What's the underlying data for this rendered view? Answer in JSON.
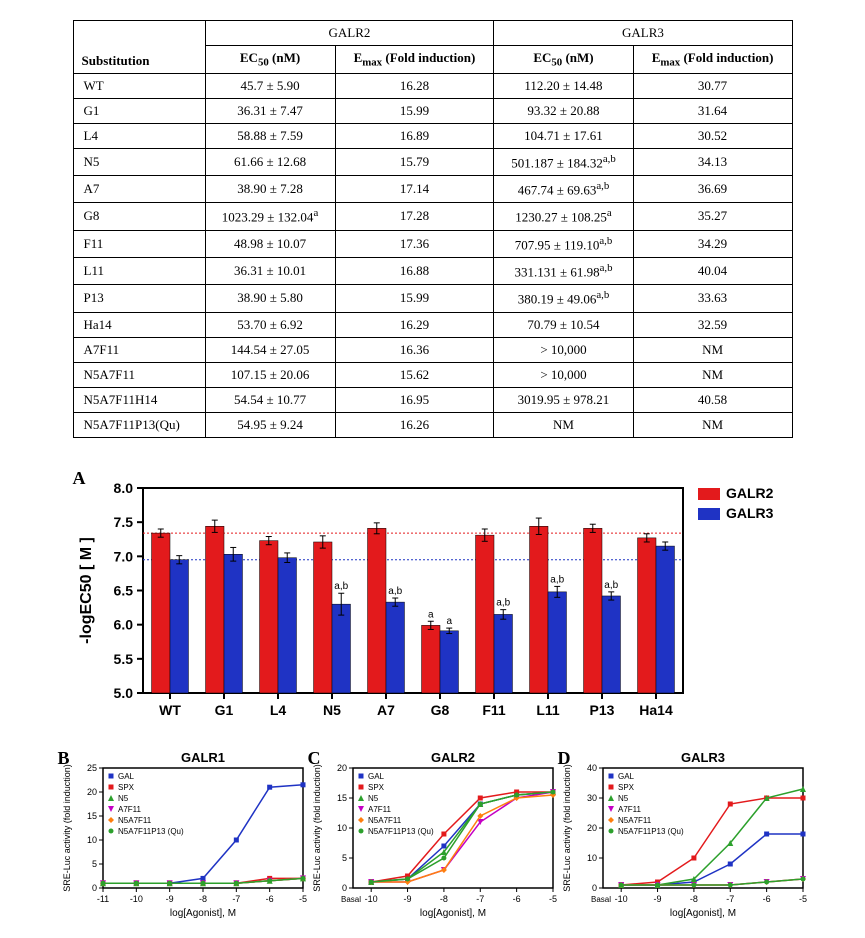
{
  "table": {
    "header_receptor1": "GALR2",
    "header_receptor2": "GALR3",
    "col_sub": "Substitution",
    "col_ec50": "EC",
    "col_ec50_sub": "50",
    "col_ec50_unit": "(nM)",
    "col_emax": "E",
    "col_emax_sub": "max",
    "col_emax_rest": " (Fold induction)",
    "rows": [
      {
        "sub": "WT",
        "r2_ec50": "45.7 ± 5.90",
        "r2_emax": "16.28",
        "r3_ec50": "112.20 ± 14.48",
        "r3_emax": "30.77"
      },
      {
        "sub": "G1",
        "r2_ec50": "36.31 ± 7.47",
        "r2_emax": "15.99",
        "r3_ec50": "93.32 ± 20.88",
        "r3_emax": "31.64"
      },
      {
        "sub": "L4",
        "r2_ec50": "58.88 ± 7.59",
        "r2_emax": "16.89",
        "r3_ec50": "104.71 ± 17.61",
        "r3_emax": "30.52"
      },
      {
        "sub": "N5",
        "r2_ec50": "61.66 ± 12.68",
        "r2_emax": "15.79",
        "r3_ec50": "501.187 ± 184.32",
        "r3_ec50_sup": "a,b",
        "r3_emax": "34.13"
      },
      {
        "sub": "A7",
        "r2_ec50": "38.90 ± 7.28",
        "r2_emax": "17.14",
        "r3_ec50": "467.74 ± 69.63",
        "r3_ec50_sup": "a,b",
        "r3_emax": "36.69"
      },
      {
        "sub": "G8",
        "r2_ec50": "1023.29 ± 132.04",
        "r2_ec50_sup": "a",
        "r2_emax": "17.28",
        "r3_ec50": "1230.27 ± 108.25",
        "r3_ec50_sup": "a",
        "r3_emax": "35.27"
      },
      {
        "sub": "F11",
        "r2_ec50": "48.98 ± 10.07",
        "r2_emax": "17.36",
        "r3_ec50": "707.95 ± 119.10",
        "r3_ec50_sup": "a,b",
        "r3_emax": "34.29"
      },
      {
        "sub": "L11",
        "r2_ec50": "36.31 ± 10.01",
        "r2_emax": "16.88",
        "r3_ec50": "331.131 ± 61.98",
        "r3_ec50_sup": "a,b",
        "r3_emax": "40.04"
      },
      {
        "sub": "P13",
        "r2_ec50": "38.90 ± 5.80",
        "r2_emax": "15.99",
        "r3_ec50": "380.19 ± 49.06",
        "r3_ec50_sup": "a,b",
        "r3_emax": "33.63"
      },
      {
        "sub": "Ha14",
        "r2_ec50": "53.70 ± 6.92",
        "r2_emax": "16.29",
        "r3_ec50": "70.79 ± 10.54",
        "r3_emax": "32.59"
      },
      {
        "sub": "A7F11",
        "r2_ec50": "144.54 ± 27.05",
        "r2_emax": "16.36",
        "r3_ec50": "> 10,000",
        "r3_emax": "NM"
      },
      {
        "sub": "N5A7F11",
        "r2_ec50": "107.15 ± 20.06",
        "r2_emax": "15.62",
        "r3_ec50": "> 10,000",
        "r3_emax": "NM"
      },
      {
        "sub": "N5A7F11H14",
        "r2_ec50": "54.54 ± 10.77",
        "r2_emax": "16.95",
        "r3_ec50": "3019.95 ± 978.21",
        "r3_emax": "40.58"
      },
      {
        "sub": "N5A7F11P13(Qu)",
        "r2_ec50": "54.95 ± 9.24",
        "r2_emax": "16.26",
        "r3_ec50": "NM",
        "r3_emax": "NM"
      }
    ]
  },
  "panelA": {
    "type": "bar",
    "label": "A",
    "ylabel": "-logEC50 [ M ]",
    "categories": [
      "WT",
      "G1",
      "L4",
      "N5",
      "A7",
      "G8",
      "F11",
      "L11",
      "P13",
      "Ha14"
    ],
    "ylim": [
      5.0,
      8.0
    ],
    "yticks": [
      5.0,
      5.5,
      6.0,
      6.5,
      7.0,
      7.5,
      8.0
    ],
    "series": [
      {
        "name": "GALR2",
        "color": "#e31a1c",
        "values": [
          7.34,
          7.44,
          7.23,
          7.21,
          7.41,
          5.99,
          7.31,
          7.44,
          7.41,
          7.27
        ],
        "errors": [
          0.06,
          0.09,
          0.06,
          0.09,
          0.08,
          0.06,
          0.09,
          0.12,
          0.06,
          0.06
        ]
      },
      {
        "name": "GALR3",
        "color": "#1f33c4",
        "values": [
          6.95,
          7.03,
          6.98,
          6.3,
          6.33,
          5.91,
          6.15,
          6.48,
          6.42,
          7.15
        ],
        "errors": [
          0.06,
          0.1,
          0.07,
          0.16,
          0.06,
          0.04,
          0.07,
          0.08,
          0.06,
          0.06
        ]
      }
    ],
    "annotations": {
      "N5": {
        "r3": "a,b"
      },
      "A7": {
        "r3": "a,b"
      },
      "G8": {
        "r2": "a",
        "r3": "a"
      },
      "F11": {
        "r3": "a,b"
      },
      "L11": {
        "r3": "a,b"
      },
      "P13": {
        "r3": "a,b"
      }
    },
    "ref_lines": [
      {
        "y": 7.34,
        "color": "#e31a1c",
        "dash": "2,2"
      },
      {
        "y": 6.95,
        "color": "#1f33c4",
        "dash": "2,2"
      }
    ],
    "bar_width": 0.38,
    "plot_bg": "#ffffff",
    "axis_color": "#000000",
    "tick_fontsize": 14,
    "label_fontsize": 16,
    "label_fontweight": "bold",
    "legend_fontsize": 14
  },
  "panelsBCD": [
    {
      "label": "B",
      "title": "GALR1",
      "ylabel": "SRE-Luc activity (fold induction)",
      "xlim": [
        -11,
        -5
      ],
      "ylim": [
        0,
        25
      ],
      "yticks": [
        0,
        5,
        10,
        15,
        20,
        25
      ],
      "xticks": [
        -11,
        -10,
        -9,
        -8,
        -7,
        -6,
        -5
      ],
      "xlabel": "log[Agonist], M",
      "series": [
        {
          "name": "GAL",
          "color": "#1f33c4",
          "marker": "square",
          "x": [
            -11,
            -10,
            -9,
            -8,
            -7,
            -6,
            -5
          ],
          "y": [
            1,
            1,
            1,
            2,
            10,
            21,
            21.5
          ]
        },
        {
          "name": "SPX",
          "color": "#e31a1c",
          "marker": "square",
          "x": [
            -11,
            -10,
            -9,
            -8,
            -7,
            -6,
            -5
          ],
          "y": [
            1,
            1,
            1,
            1,
            1,
            2,
            2
          ]
        },
        {
          "name": "N5",
          "color": "#2ca02c",
          "marker": "triangle",
          "x": [
            -11,
            -10,
            -9,
            -8,
            -7,
            -6,
            -5
          ],
          "y": [
            1,
            1,
            1,
            1,
            1,
            1.5,
            2
          ]
        },
        {
          "name": "A7F11",
          "color": "#c400c4",
          "marker": "triangle-down",
          "x": [
            -11,
            -10,
            -9,
            -8,
            -7,
            -6,
            -5
          ],
          "y": [
            1,
            1,
            1,
            1,
            1,
            1.5,
            2
          ]
        },
        {
          "name": "N5A7F11",
          "color": "#ff7f0e",
          "marker": "diamond",
          "x": [
            -11,
            -10,
            -9,
            -8,
            -7,
            -6,
            -5
          ],
          "y": [
            1,
            1,
            1,
            1,
            1,
            1.5,
            2
          ]
        },
        {
          "name": "N5A7F11P13 (Qu)",
          "color": "#2ca02c",
          "marker": "circle",
          "x": [
            -11,
            -10,
            -9,
            -8,
            -7,
            -6,
            -5
          ],
          "y": [
            1,
            1,
            1,
            1,
            1,
            1.5,
            2
          ]
        }
      ]
    },
    {
      "label": "C",
      "title": "GALR2",
      "ylabel": "SRE-Luc activity (fold induction)",
      "xlim": [
        -10.5,
        -5
      ],
      "ylim": [
        0,
        20
      ],
      "yticks": [
        0,
        5,
        10,
        15,
        20
      ],
      "xticks": [
        -10,
        -9,
        -8,
        -7,
        -6,
        -5
      ],
      "xlabel": "log[Agonist], M",
      "basal": true,
      "series": [
        {
          "name": "GAL",
          "color": "#1f33c4",
          "marker": "square",
          "x": [
            -10,
            -9,
            -8,
            -7,
            -6,
            -5
          ],
          "y": [
            1,
            1.5,
            7,
            14,
            15.5,
            16
          ]
        },
        {
          "name": "SPX",
          "color": "#e31a1c",
          "marker": "square",
          "x": [
            -10,
            -9,
            -8,
            -7,
            -6,
            -5
          ],
          "y": [
            1,
            2,
            9,
            15,
            16,
            16
          ]
        },
        {
          "name": "N5",
          "color": "#2ca02c",
          "marker": "triangle",
          "x": [
            -10,
            -9,
            -8,
            -7,
            -6,
            -5
          ],
          "y": [
            1,
            1.5,
            6,
            14,
            15.5,
            16
          ]
        },
        {
          "name": "A7F11",
          "color": "#c400c4",
          "marker": "triangle-down",
          "x": [
            -10,
            -9,
            -8,
            -7,
            -6,
            -5
          ],
          "y": [
            1,
            1,
            3,
            11,
            15,
            16
          ]
        },
        {
          "name": "N5A7F11",
          "color": "#ff7f0e",
          "marker": "diamond",
          "x": [
            -10,
            -9,
            -8,
            -7,
            -6,
            -5
          ],
          "y": [
            1,
            1,
            3,
            12,
            15,
            15.5
          ]
        },
        {
          "name": "N5A7F11P13 (Qu)",
          "color": "#2ca02c",
          "marker": "circle",
          "x": [
            -10,
            -9,
            -8,
            -7,
            -6,
            -5
          ],
          "y": [
            1,
            1.5,
            5,
            14,
            15.5,
            16
          ]
        }
      ]
    },
    {
      "label": "D",
      "title": "GALR3",
      "ylabel": "SRE-Luc activity (fold induction)",
      "xlim": [
        -10.5,
        -5
      ],
      "ylim": [
        0,
        40
      ],
      "yticks": [
        0,
        10,
        20,
        30,
        40
      ],
      "xticks": [
        -10,
        -9,
        -8,
        -7,
        -6,
        -5
      ],
      "xlabel": "log[Agonist], M",
      "basal": true,
      "series": [
        {
          "name": "GAL",
          "color": "#1f33c4",
          "marker": "square",
          "x": [
            -10,
            -9,
            -8,
            -7,
            -6,
            -5
          ],
          "y": [
            1,
            1,
            2,
            8,
            18,
            18
          ]
        },
        {
          "name": "SPX",
          "color": "#e31a1c",
          "marker": "square",
          "x": [
            -10,
            -9,
            -8,
            -7,
            -6,
            -5
          ],
          "y": [
            1,
            2,
            10,
            28,
            30,
            30
          ]
        },
        {
          "name": "N5",
          "color": "#2ca02c",
          "marker": "triangle",
          "x": [
            -10,
            -9,
            -8,
            -7,
            -6,
            -5
          ],
          "y": [
            1,
            1,
            3,
            15,
            30,
            33
          ]
        },
        {
          "name": "A7F11",
          "color": "#c400c4",
          "marker": "triangle-down",
          "x": [
            -10,
            -9,
            -8,
            -7,
            -6,
            -5
          ],
          "y": [
            1,
            1,
            1,
            1,
            2,
            3
          ]
        },
        {
          "name": "N5A7F11",
          "color": "#ff7f0e",
          "marker": "diamond",
          "x": [
            -10,
            -9,
            -8,
            -7,
            -6,
            -5
          ],
          "y": [
            1,
            1,
            1,
            1,
            2,
            3
          ]
        },
        {
          "name": "N5A7F11P13 (Qu)",
          "color": "#2ca02c",
          "marker": "circle",
          "x": [
            -10,
            -9,
            -8,
            -7,
            -6,
            -5
          ],
          "y": [
            1,
            1,
            1,
            1,
            2,
            3
          ]
        }
      ]
    }
  ],
  "legend_items": [
    {
      "name": "GAL",
      "color": "#1f33c4",
      "marker": "square"
    },
    {
      "name": "SPX",
      "color": "#e31a1c",
      "marker": "square"
    },
    {
      "name": "N5",
      "color": "#2ca02c",
      "marker": "triangle",
      "sup": "5"
    },
    {
      "name": "A7F11",
      "color": "#c400c4",
      "marker": "triangle-down",
      "sup": "7,11"
    },
    {
      "name": "N5A7F11",
      "color": "#ff7f0e",
      "marker": "diamond"
    },
    {
      "name": "N5A7F11P13 (Qu)",
      "color": "#2ca02c",
      "marker": "circle"
    }
  ]
}
